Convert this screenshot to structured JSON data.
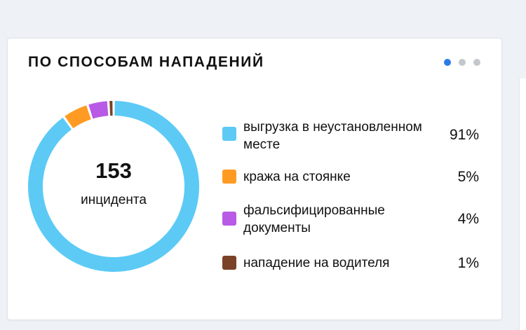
{
  "card": {
    "title": "ПО СПОСОБАМ НАПАДЕНИЙ",
    "pager": {
      "count": 3,
      "active_index": 0
    }
  },
  "chart_data": {
    "type": "pie",
    "variant": "donut",
    "total": "153",
    "total_label": "инцидента",
    "slices": [
      {
        "label": "выгрузка в неустановленном месте",
        "value": 91,
        "display": "91%",
        "color": "#5ccaf5"
      },
      {
        "label": "кража на стоянке",
        "value": 5,
        "display": "5%",
        "color": "#ff9b22"
      },
      {
        "label": "фальсифицированные документы",
        "value": 4,
        "display": "4%",
        "color": "#b85ae6"
      },
      {
        "label": "нападение на водителя",
        "value": 1,
        "display": "1%",
        "color": "#7a4226"
      }
    ]
  }
}
